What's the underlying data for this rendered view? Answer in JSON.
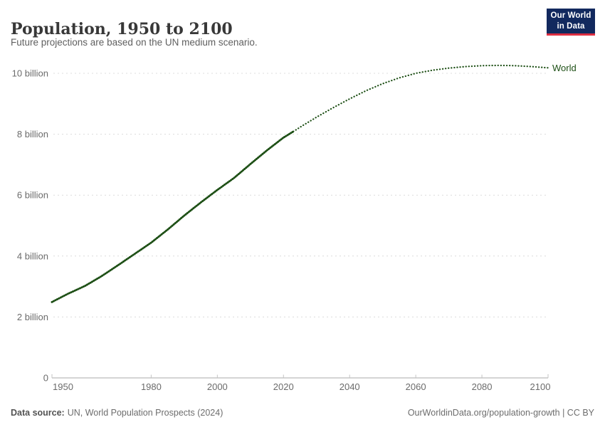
{
  "header": {
    "title": "Population, 1950 to 2100",
    "subtitle": "Future projections are based on the UN medium scenario."
  },
  "logo": {
    "line1": "Our World",
    "line2": "in Data",
    "bg_color": "#12295e",
    "accent_color": "#dc2e41"
  },
  "footer": {
    "source_label": "Data source:",
    "source_text": "UN, World Population Prospects (2024)",
    "credit": "OurWorldinData.org/population-growth | CC BY"
  },
  "chart_data": {
    "type": "line",
    "title": "Population, 1950 to 2100",
    "subtitle": "Future projections are based on the UN medium scenario.",
    "xlabel": "",
    "ylabel": "",
    "xlim": [
      1950,
      2100
    ],
    "ylim": [
      0,
      10.45
    ],
    "grid": "horizontal-dashed",
    "legend_position": "end-of-line",
    "x_ticks": [
      1950,
      1980,
      2000,
      2020,
      2040,
      2060,
      2080,
      2100
    ],
    "y_ticks": [
      {
        "value": 0,
        "label": "0"
      },
      {
        "value": 2,
        "label": "2 billion"
      },
      {
        "value": 4,
        "label": "4 billion"
      },
      {
        "value": 6,
        "label": "6 billion"
      },
      {
        "value": 8,
        "label": "8 billion"
      },
      {
        "value": 10,
        "label": "10 billion"
      }
    ],
    "series": [
      {
        "name": "World",
        "color": "#1d4f15",
        "unit": "billion people",
        "historical_style": "dense-dots",
        "projection_style": "dotted",
        "projection_start_x": 2023,
        "points": [
          [
            1950,
            2.49
          ],
          [
            1955,
            2.77
          ],
          [
            1960,
            3.02
          ],
          [
            1965,
            3.34
          ],
          [
            1970,
            3.7
          ],
          [
            1975,
            4.07
          ],
          [
            1980,
            4.44
          ],
          [
            1985,
            4.87
          ],
          [
            1990,
            5.33
          ],
          [
            1995,
            5.76
          ],
          [
            2000,
            6.17
          ],
          [
            2005,
            6.56
          ],
          [
            2010,
            7.02
          ],
          [
            2015,
            7.47
          ],
          [
            2020,
            7.89
          ],
          [
            2023,
            8.09
          ],
          [
            2025,
            8.23
          ],
          [
            2030,
            8.56
          ],
          [
            2035,
            8.87
          ],
          [
            2040,
            9.16
          ],
          [
            2045,
            9.43
          ],
          [
            2050,
            9.66
          ],
          [
            2055,
            9.85
          ],
          [
            2060,
            10.0
          ],
          [
            2065,
            10.1
          ],
          [
            2070,
            10.17
          ],
          [
            2075,
            10.22
          ],
          [
            2080,
            10.25
          ],
          [
            2085,
            10.26
          ],
          [
            2090,
            10.25
          ],
          [
            2095,
            10.22
          ],
          [
            2100,
            10.18
          ]
        ]
      }
    ]
  }
}
